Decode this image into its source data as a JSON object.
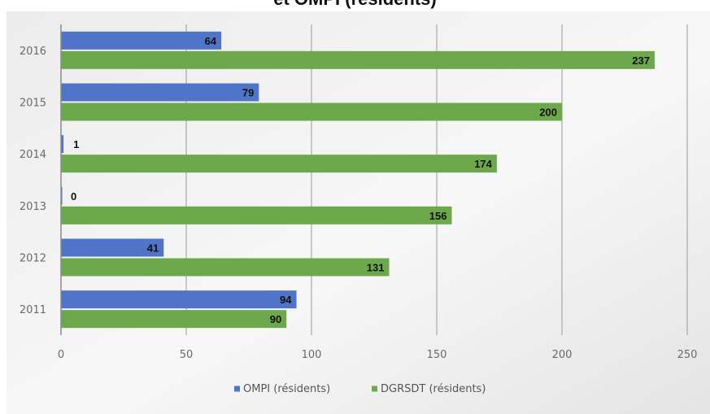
{
  "chart_data": {
    "type": "bar",
    "orientation": "horizontal",
    "title": "et OMPI (résidents)",
    "categories": [
      "2011",
      "2012",
      "2013",
      "2014",
      "2015",
      "2016"
    ],
    "series": [
      {
        "name": "OMPI (résidents)",
        "color": "#4f74c8",
        "values": [
          94,
          41,
          0,
          1,
          79,
          64
        ]
      },
      {
        "name": "DGRSDT (résidents)",
        "color": "#6ea84c",
        "values": [
          90,
          131,
          156,
          174,
          200,
          237
        ]
      }
    ],
    "xlim": [
      0,
      250
    ],
    "xticks": [
      "0",
      "50",
      "100",
      "150",
      "200",
      "250"
    ],
    "grid": true,
    "data_labels": true,
    "legend_position": "bottom"
  }
}
